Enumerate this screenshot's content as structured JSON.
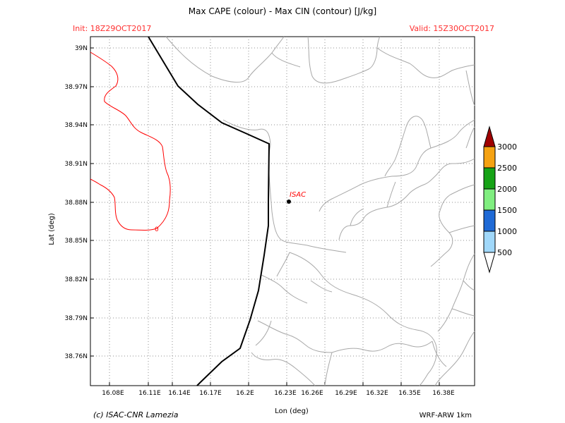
{
  "header": {
    "title": "Max CAPE (colour) - Max CIN (contour) [J/kg]",
    "init": "Init: 18Z29OCT2017",
    "valid": "Valid: 15Z30OCT2017"
  },
  "axes": {
    "ylabel": "Lat (deg)",
    "xlabel": "Lon (deg)",
    "lat_ticks": [
      "39N",
      "38.97N",
      "38.94N",
      "38.91N",
      "38.88N",
      "38.85N",
      "38.82N",
      "38.79N",
      "38.76N"
    ],
    "lon_ticks": [
      "16.08E",
      "16.11E",
      "16.14E",
      "16.17E",
      "16.2E",
      "16.23E",
      "16.26E",
      "16.29E",
      "16.32E",
      "16.35E",
      "16.38E"
    ]
  },
  "station": {
    "label": "ISAC",
    "lon": 16.237,
    "lat": 38.88
  },
  "contour": {
    "label": "0",
    "color": "#ff0000"
  },
  "legend": {
    "levels": [
      "500",
      "1000",
      "1500",
      "2000",
      "2500",
      "3000"
    ],
    "colors": [
      "#ffffff",
      "#a0d8fa",
      "#1f6ad6",
      "#80ee80",
      "#16a316",
      "#f5a212",
      "#a00000"
    ]
  },
  "footer": {
    "credit": "(c) ISAC-CNR Lamezia",
    "model": "WRF-ARW 1km"
  }
}
